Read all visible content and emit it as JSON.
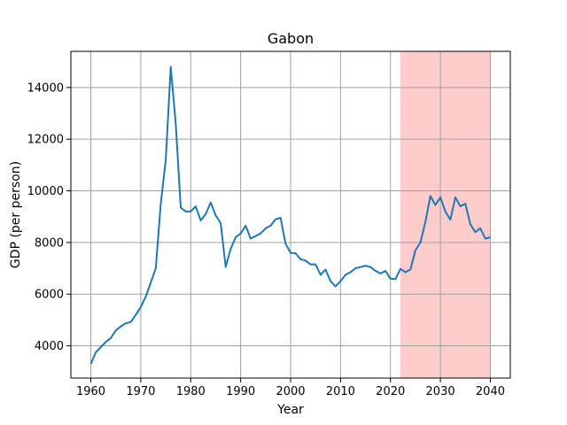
{
  "chart_data": {
    "type": "line",
    "title": "Gabon",
    "xlabel": "Year",
    "ylabel": "GDP (per person)",
    "xlim": [
      1956,
      2044
    ],
    "ylim": [
      2750,
      15400
    ],
    "grid": true,
    "x_ticks": [
      1960,
      1970,
      1980,
      1990,
      2000,
      2010,
      2020,
      2030,
      2040
    ],
    "x_tick_labels": [
      "1960",
      "1970",
      "1980",
      "1990",
      "2000",
      "2010",
      "2020",
      "2030",
      "2040"
    ],
    "y_ticks": [
      4000,
      6000,
      8000,
      10000,
      12000,
      14000
    ],
    "y_tick_labels": [
      "4000",
      "6000",
      "8000",
      "10000",
      "12000",
      "14000"
    ],
    "colors": {
      "line": "#1f77b4",
      "shade": "#ffcccc",
      "grid": "#a0a0a0"
    },
    "shaded_region": {
      "x_start": 2022,
      "x_end": 2040
    },
    "series": [
      {
        "x": [
          1960,
          1961,
          1962,
          1963,
          1964,
          1965,
          1966,
          1967,
          1968,
          1969,
          1970,
          1971,
          1972,
          1973,
          1974,
          1975,
          1976,
          1977,
          1978,
          1979,
          1980,
          1981,
          1982,
          1983,
          1984,
          1985,
          1986,
          1987,
          1988,
          1989,
          1990,
          1991,
          1992,
          1993,
          1994,
          1995,
          1996,
          1997,
          1998,
          1999,
          2000,
          2001,
          2002,
          2003,
          2004,
          2005,
          2006,
          2007,
          2008,
          2009,
          2010,
          2011,
          2012,
          2013,
          2014,
          2015,
          2016,
          2017,
          2018,
          2019,
          2020,
          2021,
          2022,
          2023,
          2024,
          2025,
          2026,
          2027,
          2028,
          2029,
          2030,
          2031,
          2032,
          2033,
          2034,
          2035,
          2036,
          2037,
          2038,
          2039,
          2040
        ],
        "values": [
          3300,
          3750,
          3950,
          4150,
          4300,
          4600,
          4750,
          4870,
          4920,
          5200,
          5500,
          5900,
          6450,
          7000,
          9500,
          11200,
          14800,
          12600,
          9350,
          9200,
          9200,
          9400,
          8850,
          9100,
          9550,
          9050,
          8750,
          7050,
          7750,
          8200,
          8350,
          8650,
          8150,
          8250,
          8350,
          8550,
          8650,
          8900,
          8950,
          7950,
          7600,
          7580,
          7350,
          7300,
          7150,
          7150,
          6750,
          6950,
          6500,
          6300,
          6500,
          6750,
          6850,
          7000,
          7050,
          7100,
          7050,
          6900,
          6800,
          6900,
          6600,
          6580,
          6980,
          6850,
          6950,
          7700,
          8000,
          8800,
          9800,
          9450,
          9750,
          9200,
          8880,
          9750,
          9400,
          9500,
          8700,
          8400,
          8550,
          8150,
          8200
        ]
      }
    ]
  }
}
